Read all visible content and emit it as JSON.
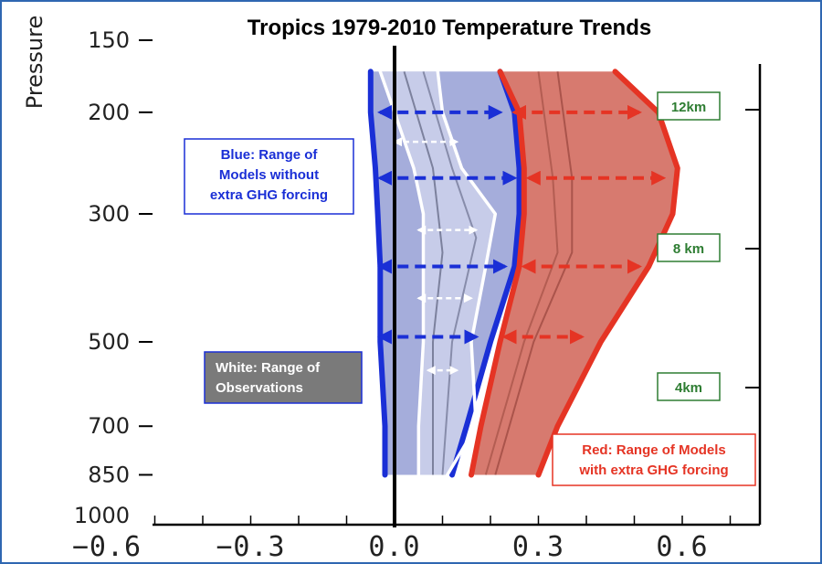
{
  "chart_data": {
    "type": "line",
    "title": "Tropics 1979-2010 Temperature Trends",
    "xlabel": "",
    "ylabel": "Pressure",
    "xlim": [
      -0.7,
      0.7
    ],
    "xticks": [
      "−0.6",
      "−0.3",
      "0.0",
      "0.3",
      "0.6"
    ],
    "xtick_values": [
      -0.6,
      -0.3,
      0.0,
      0.3,
      0.6
    ],
    "yticks": [
      "150",
      "200",
      "300",
      "500",
      "700",
      "850",
      "1000"
    ],
    "ytick_values": [
      150,
      200,
      300,
      500,
      700,
      850,
      1000
    ],
    "y_scale": "log",
    "y_inverted": true,
    "grid": false,
    "series": [
      {
        "name": "Blue: Range of Models without extra GHG forcing",
        "color": "#1a2fd6",
        "pressure": [
          170,
          200,
          250,
          300,
          370,
          500,
          700,
          850
        ],
        "lower": [
          -0.05,
          -0.05,
          -0.04,
          -0.035,
          -0.03,
          -0.03,
          -0.02,
          -0.02
        ],
        "upper": [
          0.22,
          0.25,
          0.26,
          0.26,
          0.25,
          0.2,
          0.15,
          0.12
        ]
      },
      {
        "name": "Red: Range of Models with extra GHG forcing",
        "color": "#e53424",
        "pressure": [
          170,
          200,
          250,
          300,
          370,
          500,
          700,
          850
        ],
        "lower": [
          0.22,
          0.26,
          0.27,
          0.27,
          0.26,
          0.22,
          0.18,
          0.16
        ],
        "upper": [
          0.46,
          0.55,
          0.59,
          0.58,
          0.53,
          0.43,
          0.34,
          0.3
        ]
      },
      {
        "name": "White: Range of Observations",
        "color": "#ffffff",
        "pressure": [
          170,
          200,
          250,
          300,
          370,
          500,
          700,
          850
        ],
        "lower": [
          -0.03,
          0.0,
          0.04,
          0.06,
          0.06,
          0.06,
          0.05,
          0.05
        ],
        "upper": [
          0.09,
          0.1,
          0.14,
          0.21,
          0.19,
          0.16,
          0.17,
          0.11
        ]
      }
    ],
    "arrows": [
      {
        "color": "#1a2fd6",
        "pressure": 200,
        "from": -0.03,
        "to": 0.22
      },
      {
        "color": "#1a2fd6",
        "pressure": 260,
        "from": -0.03,
        "to": 0.25
      },
      {
        "color": "#1a2fd6",
        "pressure": 370,
        "from": -0.03,
        "to": 0.23
      },
      {
        "color": "#1a2fd6",
        "pressure": 490,
        "from": -0.03,
        "to": 0.17
      },
      {
        "color": "#e53424",
        "pressure": 200,
        "from": 0.25,
        "to": 0.51
      },
      {
        "color": "#e53424",
        "pressure": 260,
        "from": 0.28,
        "to": 0.56
      },
      {
        "color": "#e53424",
        "pressure": 370,
        "from": 0.27,
        "to": 0.51
      },
      {
        "color": "#e53424",
        "pressure": 490,
        "from": 0.23,
        "to": 0.39
      },
      {
        "color": "#ffffff",
        "pressure": 225,
        "from": 0.0,
        "to": 0.13
      },
      {
        "color": "#ffffff",
        "pressure": 320,
        "from": 0.05,
        "to": 0.17
      },
      {
        "color": "#ffffff",
        "pressure": 420,
        "from": 0.05,
        "to": 0.16
      },
      {
        "color": "#ffffff",
        "pressure": 560,
        "from": 0.07,
        "to": 0.13
      }
    ],
    "legend": [
      {
        "text": [
          "Blue: Range of",
          "Models without",
          "extra GHG forcing"
        ],
        "color": "#1a2fd6",
        "bg": "#ffffff",
        "border": "#1a2fd6"
      },
      {
        "text": [
          "White: Range of",
          "Observations"
        ],
        "color": "#ffffff",
        "bg": "#7a7a7a",
        "border": "#1a2fd6"
      },
      {
        "text": [
          "Red: Range of Models",
          "with extra GHG forcing"
        ],
        "color": "#e53424",
        "bg": "#ffffff",
        "border": "#e53424"
      }
    ],
    "altitude_labels": [
      "12km",
      "8 km",
      "4km"
    ]
  }
}
